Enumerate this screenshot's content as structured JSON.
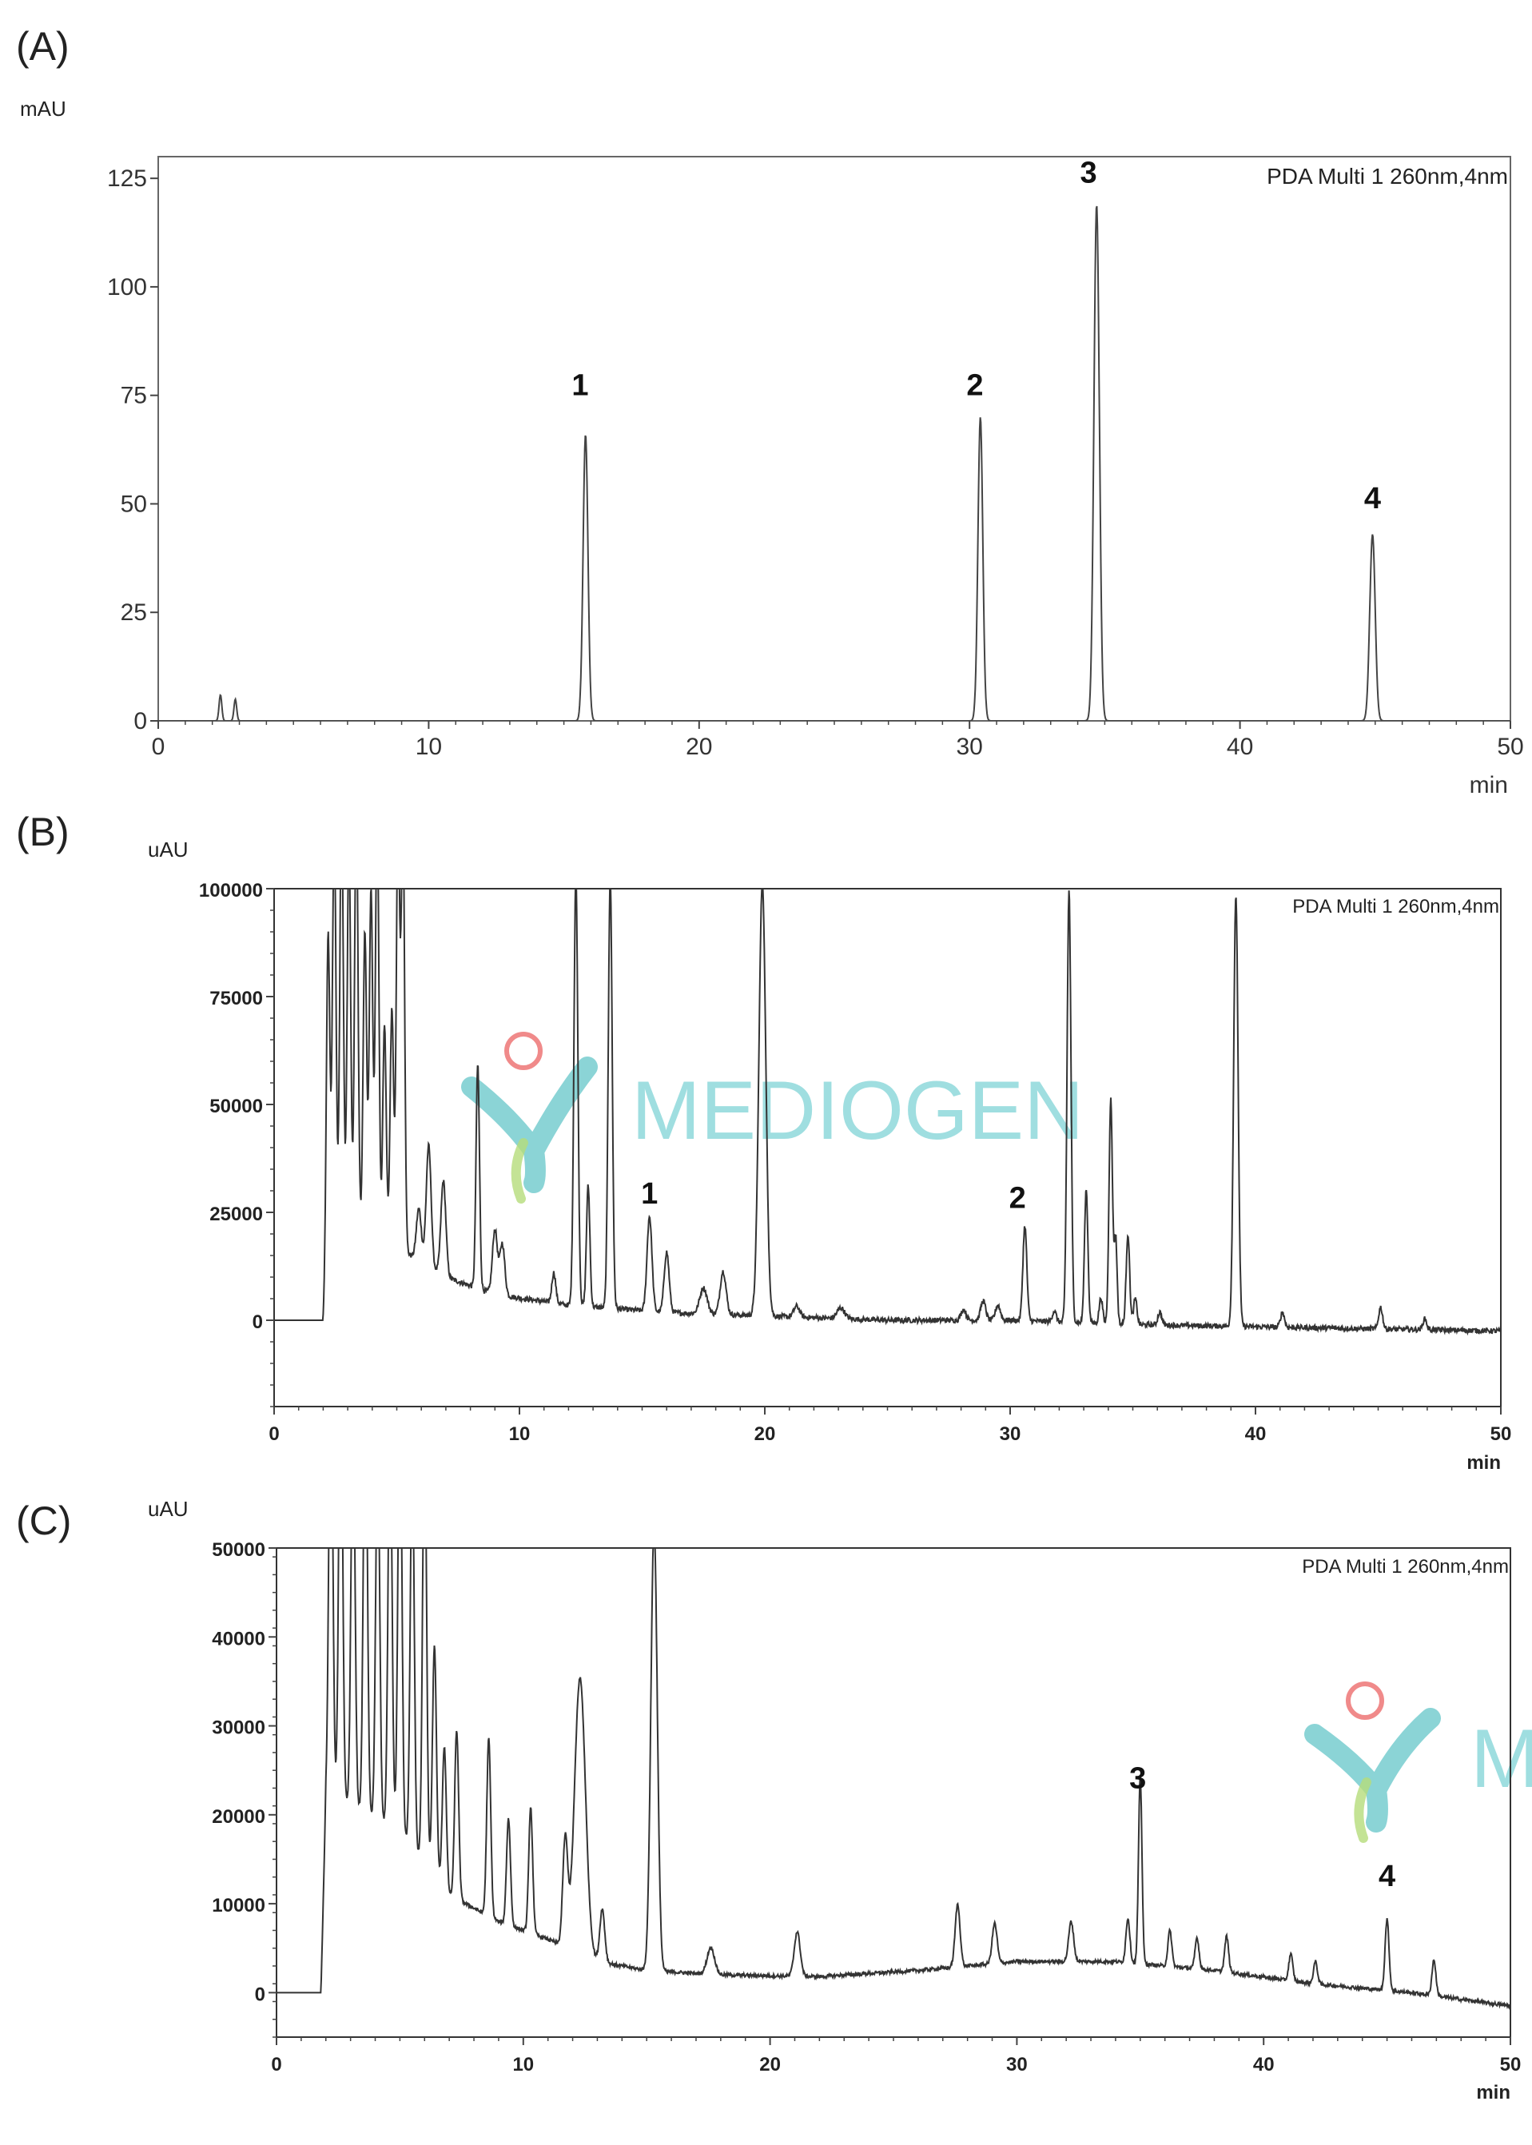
{
  "watermark": {
    "text": "MEDIOGEN",
    "text_c": "M"
  },
  "chart_data": [
    {
      "type": "line",
      "panel_label": "(A)",
      "ylabel": "mAU",
      "xlabel": "min",
      "legend": "PDA Multi 1 260nm,4nm",
      "xlim": [
        0,
        50
      ],
      "ylim": [
        0,
        130
      ],
      "xticks": [
        0,
        10,
        20,
        30,
        40,
        50
      ],
      "yticks": [
        0,
        25,
        50,
        75,
        100,
        125
      ],
      "baseline": 0,
      "noise": 0,
      "peaks": [
        {
          "x": 2.3,
          "y": 6,
          "w": 0.05
        },
        {
          "x": 2.85,
          "y": 5,
          "w": 0.05
        },
        {
          "x": 15.8,
          "y": 66,
          "w": 0.09
        },
        {
          "x": 30.4,
          "y": 70,
          "w": 0.09
        },
        {
          "x": 34.7,
          "y": 119,
          "w": 0.1
        },
        {
          "x": 44.9,
          "y": 43,
          "w": 0.1
        }
      ],
      "peak_labels": [
        {
          "x": 15.6,
          "y": 75,
          "text": "1"
        },
        {
          "x": 30.2,
          "y": 75,
          "text": "2"
        },
        {
          "x": 34.4,
          "y": 124,
          "text": "3"
        },
        {
          "x": 44.9,
          "y": 49,
          "text": "4"
        }
      ]
    },
    {
      "type": "line",
      "panel_label": "(B)",
      "ylabel": "uAU",
      "xlabel": "min",
      "legend": "PDA Multi 1 260nm,4nm",
      "xlim": [
        0,
        50
      ],
      "ylim": [
        -20000,
        100000
      ],
      "xticks": [
        0,
        10,
        20,
        30,
        40,
        50
      ],
      "yticks": [
        0,
        25000,
        50000,
        75000,
        100000
      ],
      "start": 2.0,
      "baseline": [
        [
          2.0,
          0
        ],
        [
          2.2,
          20000
        ],
        [
          3,
          22000
        ],
        [
          5,
          17000
        ],
        [
          7,
          10000
        ],
        [
          9,
          6000
        ],
        [
          12,
          3500
        ],
        [
          16,
          1800
        ],
        [
          20,
          1000
        ],
        [
          25,
          0
        ],
        [
          30,
          0
        ],
        [
          35,
          -1000
        ],
        [
          40,
          -1500
        ],
        [
          45,
          -2000
        ],
        [
          50,
          -2500
        ]
      ],
      "noise": 1200,
      "peaks": [
        {
          "x": 2.2,
          "y": 70000,
          "w": 0.07
        },
        {
          "x": 2.45,
          "y": 95000,
          "w": 0.07
        },
        {
          "x": 2.75,
          "y": 100000,
          "w": 0.07
        },
        {
          "x": 3.05,
          "y": 90000,
          "w": 0.07
        },
        {
          "x": 3.35,
          "y": 100000,
          "w": 0.07
        },
        {
          "x": 3.7,
          "y": 70000,
          "w": 0.07
        },
        {
          "x": 3.95,
          "y": 80000,
          "w": 0.07
        },
        {
          "x": 4.2,
          "y": 100000,
          "w": 0.07
        },
        {
          "x": 4.5,
          "y": 50000,
          "w": 0.07
        },
        {
          "x": 4.8,
          "y": 55000,
          "w": 0.07
        },
        {
          "x": 5.05,
          "y": 100000,
          "w": 0.07
        },
        {
          "x": 5.25,
          "y": 100000,
          "w": 0.07
        },
        {
          "x": 5.9,
          "y": 12000,
          "w": 0.1
        },
        {
          "x": 6.3,
          "y": 28000,
          "w": 0.1
        },
        {
          "x": 6.9,
          "y": 22000,
          "w": 0.1
        },
        {
          "x": 8.3,
          "y": 52000,
          "w": 0.07
        },
        {
          "x": 9.0,
          "y": 15000,
          "w": 0.1
        },
        {
          "x": 9.3,
          "y": 12000,
          "w": 0.1
        },
        {
          "x": 11.4,
          "y": 7000,
          "w": 0.08
        },
        {
          "x": 12.3,
          "y": 100000,
          "w": 0.08
        },
        {
          "x": 12.8,
          "y": 28000,
          "w": 0.07
        },
        {
          "x": 13.7,
          "y": 100000,
          "w": 0.08
        },
        {
          "x": 15.3,
          "y": 22000,
          "w": 0.1
        },
        {
          "x": 16.0,
          "y": 14000,
          "w": 0.1
        },
        {
          "x": 17.5,
          "y": 6000,
          "w": 0.15
        },
        {
          "x": 18.3,
          "y": 10000,
          "w": 0.12
        },
        {
          "x": 19.9,
          "y": 100000,
          "w": 0.14
        },
        {
          "x": 21.3,
          "y": 2500,
          "w": 0.12
        },
        {
          "x": 23.1,
          "y": 2500,
          "w": 0.15
        },
        {
          "x": 28.1,
          "y": 2500,
          "w": 0.1
        },
        {
          "x": 28.9,
          "y": 4500,
          "w": 0.1
        },
        {
          "x": 29.5,
          "y": 3500,
          "w": 0.1
        },
        {
          "x": 30.6,
          "y": 22000,
          "w": 0.08
        },
        {
          "x": 31.8,
          "y": 2500,
          "w": 0.08
        },
        {
          "x": 32.4,
          "y": 100000,
          "w": 0.08
        },
        {
          "x": 33.1,
          "y": 31000,
          "w": 0.07
        },
        {
          "x": 33.7,
          "y": 6000,
          "w": 0.07
        },
        {
          "x": 34.1,
          "y": 52000,
          "w": 0.07
        },
        {
          "x": 34.3,
          "y": 20000,
          "w": 0.06
        },
        {
          "x": 34.8,
          "y": 21000,
          "w": 0.07
        },
        {
          "x": 35.1,
          "y": 6000,
          "w": 0.07
        },
        {
          "x": 36.1,
          "y": 3000,
          "w": 0.08
        },
        {
          "x": 39.2,
          "y": 100000,
          "w": 0.09
        },
        {
          "x": 41.1,
          "y": 3500,
          "w": 0.08
        },
        {
          "x": 45.1,
          "y": 5000,
          "w": 0.08
        },
        {
          "x": 46.9,
          "y": 2500,
          "w": 0.08
        }
      ],
      "peak_labels": [
        {
          "x": 15.3,
          "y": 27000,
          "text": "1"
        },
        {
          "x": 30.3,
          "y": 26000,
          "text": "2"
        }
      ]
    },
    {
      "type": "line",
      "panel_label": "(C)",
      "ylabel": "uAU",
      "xlabel": "min",
      "legend": "PDA Multi 1 260nm,4nm",
      "xlim": [
        0,
        50
      ],
      "ylim": [
        -5000,
        50000
      ],
      "xticks": [
        0,
        10,
        20,
        30,
        40,
        50
      ],
      "yticks": [
        0,
        10000,
        20000,
        30000,
        40000,
        50000
      ],
      "start": 1.8,
      "baseline": [
        [
          1.8,
          0
        ],
        [
          2.0,
          22000
        ],
        [
          3,
          21000
        ],
        [
          5,
          18000
        ],
        [
          7,
          11000
        ],
        [
          9,
          8000
        ],
        [
          11,
          6000
        ],
        [
          13,
          3500
        ],
        [
          15,
          2500
        ],
        [
          18,
          2000
        ],
        [
          22,
          1800
        ],
        [
          26,
          2500
        ],
        [
          30,
          3500
        ],
        [
          34,
          3500
        ],
        [
          38,
          2500
        ],
        [
          42,
          1000
        ],
        [
          46,
          0
        ],
        [
          50,
          -1500
        ]
      ],
      "noise": 400,
      "peaks": [
        {
          "x": 2.2,
          "y": 50000,
          "w": 0.08
        },
        {
          "x": 2.6,
          "y": 50000,
          "w": 0.08
        },
        {
          "x": 3.1,
          "y": 45000,
          "w": 0.08
        },
        {
          "x": 3.6,
          "y": 50000,
          "w": 0.08
        },
        {
          "x": 4.1,
          "y": 43000,
          "w": 0.08
        },
        {
          "x": 4.6,
          "y": 46000,
          "w": 0.08
        },
        {
          "x": 5.0,
          "y": 50000,
          "w": 0.08
        },
        {
          "x": 5.5,
          "y": 44000,
          "w": 0.08
        },
        {
          "x": 6.0,
          "y": 50000,
          "w": 0.08
        },
        {
          "x": 6.4,
          "y": 26000,
          "w": 0.08
        },
        {
          "x": 6.8,
          "y": 16000,
          "w": 0.08
        },
        {
          "x": 7.3,
          "y": 19000,
          "w": 0.08
        },
        {
          "x": 8.6,
          "y": 20000,
          "w": 0.08
        },
        {
          "x": 9.4,
          "y": 12000,
          "w": 0.08
        },
        {
          "x": 10.3,
          "y": 14000,
          "w": 0.08
        },
        {
          "x": 11.7,
          "y": 12000,
          "w": 0.1
        },
        {
          "x": 12.3,
          "y": 31000,
          "w": 0.22
        },
        {
          "x": 13.2,
          "y": 6000,
          "w": 0.1
        },
        {
          "x": 15.3,
          "y": 50000,
          "w": 0.13
        },
        {
          "x": 17.6,
          "y": 3000,
          "w": 0.15
        },
        {
          "x": 21.1,
          "y": 5000,
          "w": 0.12
        },
        {
          "x": 27.6,
          "y": 7000,
          "w": 0.1
        },
        {
          "x": 29.1,
          "y": 4500,
          "w": 0.1
        },
        {
          "x": 32.2,
          "y": 4500,
          "w": 0.1
        },
        {
          "x": 34.5,
          "y": 5000,
          "w": 0.08
        },
        {
          "x": 35.0,
          "y": 21000,
          "w": 0.07
        },
        {
          "x": 36.2,
          "y": 4000,
          "w": 0.08
        },
        {
          "x": 37.3,
          "y": 3500,
          "w": 0.08
        },
        {
          "x": 38.5,
          "y": 4000,
          "w": 0.08
        },
        {
          "x": 41.1,
          "y": 3000,
          "w": 0.08
        },
        {
          "x": 42.1,
          "y": 2500,
          "w": 0.08
        },
        {
          "x": 45.0,
          "y": 8000,
          "w": 0.08
        },
        {
          "x": 46.9,
          "y": 4000,
          "w": 0.08
        }
      ],
      "peak_labels": [
        {
          "x": 34.9,
          "y": 23000,
          "text": "3"
        },
        {
          "x": 45.0,
          "y": 12000,
          "text": "4"
        }
      ]
    }
  ]
}
